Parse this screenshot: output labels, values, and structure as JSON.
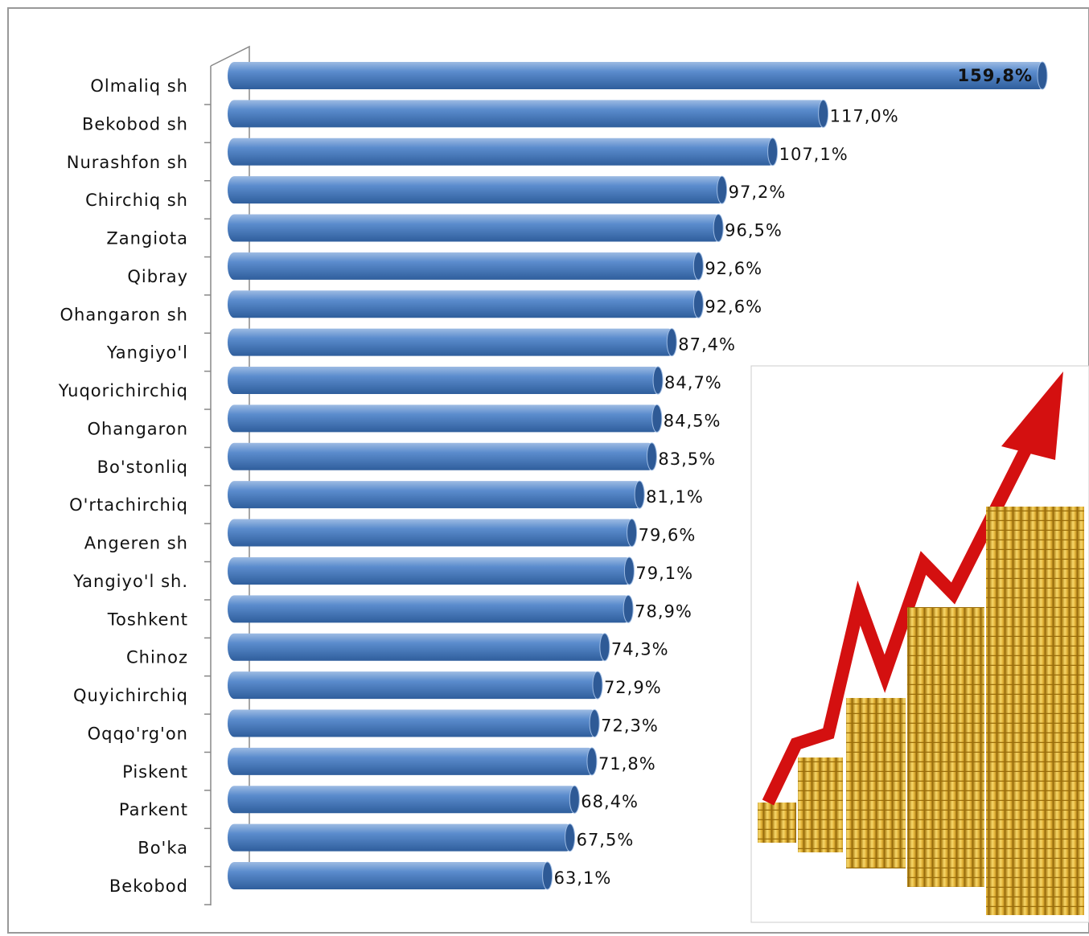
{
  "chart_data": {
    "type": "bar",
    "orientation": "horizontal",
    "color": "#4f81bd",
    "categories": [
      "Olmaliq sh",
      "Bekobod sh",
      "Nurashfon sh",
      "Chirchiq sh",
      "Zangiota",
      "Qibray",
      "Ohangaron sh",
      "Yangiyo'l",
      "Yuqorichirchiq",
      "Ohangaron",
      "Bo'stonliq",
      "O'rtachirchiq",
      "Angeren sh",
      "Yangiyo'l sh.",
      "Toshkent",
      "Chinoz",
      "Quyichirchiq",
      "Oqqo'rg'on",
      "Piskent",
      "Parkent",
      "Bo'ka",
      "Bekobod"
    ],
    "values": [
      159.8,
      117.0,
      107.1,
      97.2,
      96.5,
      92.6,
      92.6,
      87.4,
      84.7,
      84.5,
      83.5,
      81.1,
      79.6,
      79.1,
      78.9,
      74.3,
      72.9,
      72.3,
      71.8,
      68.4,
      67.5,
      63.1
    ],
    "value_labels": [
      "159,8%",
      "117,0%",
      "107,1%",
      "97,2%",
      "96,5%",
      "92,6%",
      "92,6%",
      "87,4%",
      "84,7%",
      "84,5%",
      "83,5%",
      "81,1%",
      "79,6%",
      "79,1%",
      "78,9%",
      "74,3%",
      "72,9%",
      "72,3%",
      "71,8%",
      "68,4%",
      "67,5%",
      "63,1%"
    ]
  }
}
